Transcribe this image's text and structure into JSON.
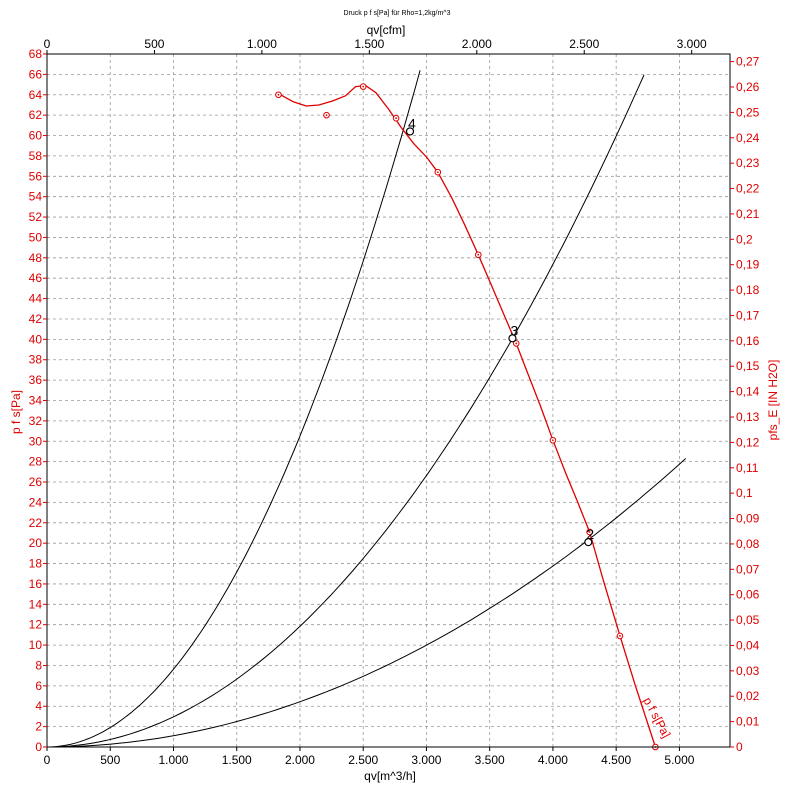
{
  "chart_data": {
    "type": "line",
    "title": "Druck p f s[Pa] für Rho=1,2kg/m^3",
    "xlabel": "qv[m^3/h]",
    "x2label": "qv[cfm]",
    "ylabel": "p f s[Pa]",
    "y2label": "pfs_E [IN H2O]",
    "xlim": [
      0,
      5400
    ],
    "ylim": [
      0,
      68
    ],
    "x2lim": [
      0,
      3178.3
    ],
    "y2lim": [
      0,
      0.273
    ],
    "grid": true,
    "x_ticks": [
      {
        "v": 0,
        "label": "0"
      },
      {
        "v": 500,
        "label": "500"
      },
      {
        "v": 1000,
        "label": "1.000"
      },
      {
        "v": 1500,
        "label": "1.500"
      },
      {
        "v": 2000,
        "label": "2.000"
      },
      {
        "v": 2500,
        "label": "2.500"
      },
      {
        "v": 3000,
        "label": "3.000"
      },
      {
        "v": 3500,
        "label": "3.500"
      },
      {
        "v": 4000,
        "label": "4.000"
      },
      {
        "v": 4500,
        "label": "4.500"
      },
      {
        "v": 5000,
        "label": "5.000"
      }
    ],
    "x2_ticks": [
      {
        "v": 0,
        "label": "0"
      },
      {
        "v": 500,
        "label": "500"
      },
      {
        "v": 1000,
        "label": "1.000"
      },
      {
        "v": 1500,
        "label": "1.500"
      },
      {
        "v": 2000,
        "label": "2.000"
      },
      {
        "v": 2500,
        "label": "2.500"
      },
      {
        "v": 3000,
        "label": "3.000"
      }
    ],
    "y_ticks": [
      0,
      2,
      4,
      6,
      8,
      10,
      12,
      14,
      16,
      18,
      20,
      22,
      24,
      26,
      28,
      30,
      32,
      34,
      36,
      38,
      40,
      42,
      44,
      46,
      48,
      50,
      52,
      54,
      56,
      58,
      60,
      62,
      64,
      66,
      68
    ],
    "y2_ticks": [
      {
        "v": 0,
        "label": "0"
      },
      {
        "v": 0.01,
        "label": "0,01"
      },
      {
        "v": 0.02,
        "label": "0,02"
      },
      {
        "v": 0.03,
        "label": "0,03"
      },
      {
        "v": 0.04,
        "label": "0,04"
      },
      {
        "v": 0.05,
        "label": "0,05"
      },
      {
        "v": 0.06,
        "label": "0,06"
      },
      {
        "v": 0.07,
        "label": "0,07"
      },
      {
        "v": 0.08,
        "label": "0,08"
      },
      {
        "v": 0.09,
        "label": "0,09"
      },
      {
        "v": 0.1,
        "label": "0,1"
      },
      {
        "v": 0.11,
        "label": "0,11"
      },
      {
        "v": 0.12,
        "label": "0,12"
      },
      {
        "v": 0.13,
        "label": "0,13"
      },
      {
        "v": 0.14,
        "label": "0,14"
      },
      {
        "v": 0.15,
        "label": "0,15"
      },
      {
        "v": 0.16,
        "label": "0,16"
      },
      {
        "v": 0.17,
        "label": "0,17"
      },
      {
        "v": 0.18,
        "label": "0,18"
      },
      {
        "v": 0.19,
        "label": "0,19"
      },
      {
        "v": 0.2,
        "label": "0,2"
      },
      {
        "v": 0.21,
        "label": "0,21"
      },
      {
        "v": 0.22,
        "label": "0,22"
      },
      {
        "v": 0.23,
        "label": "0,23"
      },
      {
        "v": 0.24,
        "label": "0,24"
      },
      {
        "v": 0.25,
        "label": "0,25"
      },
      {
        "v": 0.26,
        "label": "0,26"
      },
      {
        "v": 0.27,
        "label": "0,27"
      }
    ],
    "fan_curve": {
      "name": "p f s[Pa]",
      "color": "#e00000",
      "measured_points": [
        {
          "x": 1830,
          "y": 64.0
        },
        {
          "x": 2210,
          "y": 62.0
        },
        {
          "x": 2500,
          "y": 64.8
        },
        {
          "x": 2760,
          "y": 61.7
        },
        {
          "x": 3090,
          "y": 56.4
        },
        {
          "x": 3410,
          "y": 48.3
        },
        {
          "x": 3710,
          "y": 39.6
        },
        {
          "x": 4000,
          "y": 30.1
        },
        {
          "x": 4290,
          "y": 21.1
        },
        {
          "x": 4530,
          "y": 10.9
        },
        {
          "x": 4810,
          "y": 0
        }
      ],
      "curve": [
        {
          "x": 1830,
          "y": 64.1
        },
        {
          "x": 1950,
          "y": 63.3
        },
        {
          "x": 2050,
          "y": 62.9
        },
        {
          "x": 2150,
          "y": 63.0
        },
        {
          "x": 2260,
          "y": 63.4
        },
        {
          "x": 2360,
          "y": 63.9
        },
        {
          "x": 2440,
          "y": 64.8
        },
        {
          "x": 2520,
          "y": 64.9
        },
        {
          "x": 2600,
          "y": 64.2
        },
        {
          "x": 2700,
          "y": 62.6
        },
        {
          "x": 2800,
          "y": 60.8
        },
        {
          "x": 2900,
          "y": 59.2
        },
        {
          "x": 3000,
          "y": 57.9
        },
        {
          "x": 3090,
          "y": 56.4
        },
        {
          "x": 3200,
          "y": 53.9
        },
        {
          "x": 3300,
          "y": 51.3
        },
        {
          "x": 3410,
          "y": 48.3
        },
        {
          "x": 3500,
          "y": 45.7
        },
        {
          "x": 3600,
          "y": 42.8
        },
        {
          "x": 3710,
          "y": 39.6
        },
        {
          "x": 3800,
          "y": 36.7
        },
        {
          "x": 3900,
          "y": 33.5
        },
        {
          "x": 4000,
          "y": 30.1
        },
        {
          "x": 4100,
          "y": 26.9
        },
        {
          "x": 4200,
          "y": 23.9
        },
        {
          "x": 4290,
          "y": 21.1
        },
        {
          "x": 4400,
          "y": 16.3
        },
        {
          "x": 4530,
          "y": 10.9
        },
        {
          "x": 4650,
          "y": 6.1
        },
        {
          "x": 4810,
          "y": 0
        }
      ]
    },
    "system_curves": [
      {
        "id": "4",
        "k": 7.63e-06,
        "x_max": 2950
      },
      {
        "id": "3",
        "k": 2.96e-06,
        "x_max": 4720
      },
      {
        "id": "2",
        "k": 1.11e-06,
        "x_max": 5050
      }
    ],
    "operating_points": [
      {
        "label": "4",
        "x": 2870,
        "y": 60.4
      },
      {
        "label": "3",
        "x": 3680,
        "y": 40.1
      },
      {
        "label": "2",
        "x": 4280,
        "y": 20.1
      }
    ],
    "curve_label": "p f s[Pa]"
  }
}
